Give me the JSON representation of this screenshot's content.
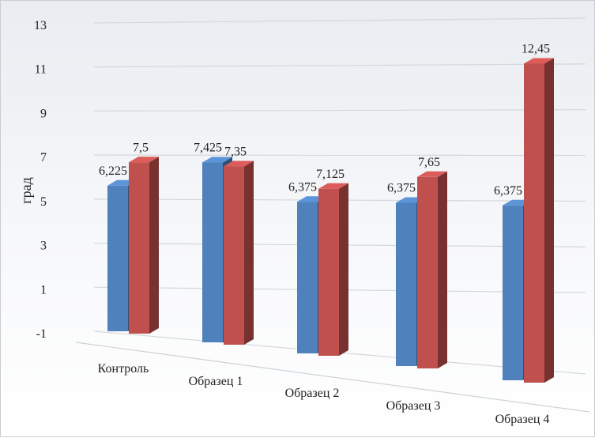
{
  "chart_data": {
    "type": "bar",
    "title": "",
    "xlabel": "",
    "ylabel": "град",
    "ylim": [
      -1,
      13
    ],
    "yticks": [
      "-1",
      "1",
      "3",
      "5",
      "7",
      "9",
      "11",
      "13"
    ],
    "ytick_values": [
      -1,
      1,
      3,
      5,
      7,
      9,
      11,
      13
    ],
    "categories": [
      "Контроль",
      "Образец 1",
      "Образец 2",
      "Образец 3",
      "Образец 4"
    ],
    "series": [
      {
        "values": [
          6.225,
          7.425,
          6.375,
          6.375,
          6.375
        ],
        "labels": [
          "6,225",
          "7,425",
          "6,375",
          "6,375",
          "6,375"
        ],
        "color": "#4f81bd"
      },
      {
        "values": [
          7.5,
          7.35,
          7.125,
          7.65,
          12.45
        ],
        "labels": [
          "7,5",
          "7,35",
          "7,125",
          "7,65",
          "12,45"
        ],
        "color": "#c0504d"
      }
    ],
    "grid": true,
    "legend": "none",
    "style": "3d-perspective"
  }
}
